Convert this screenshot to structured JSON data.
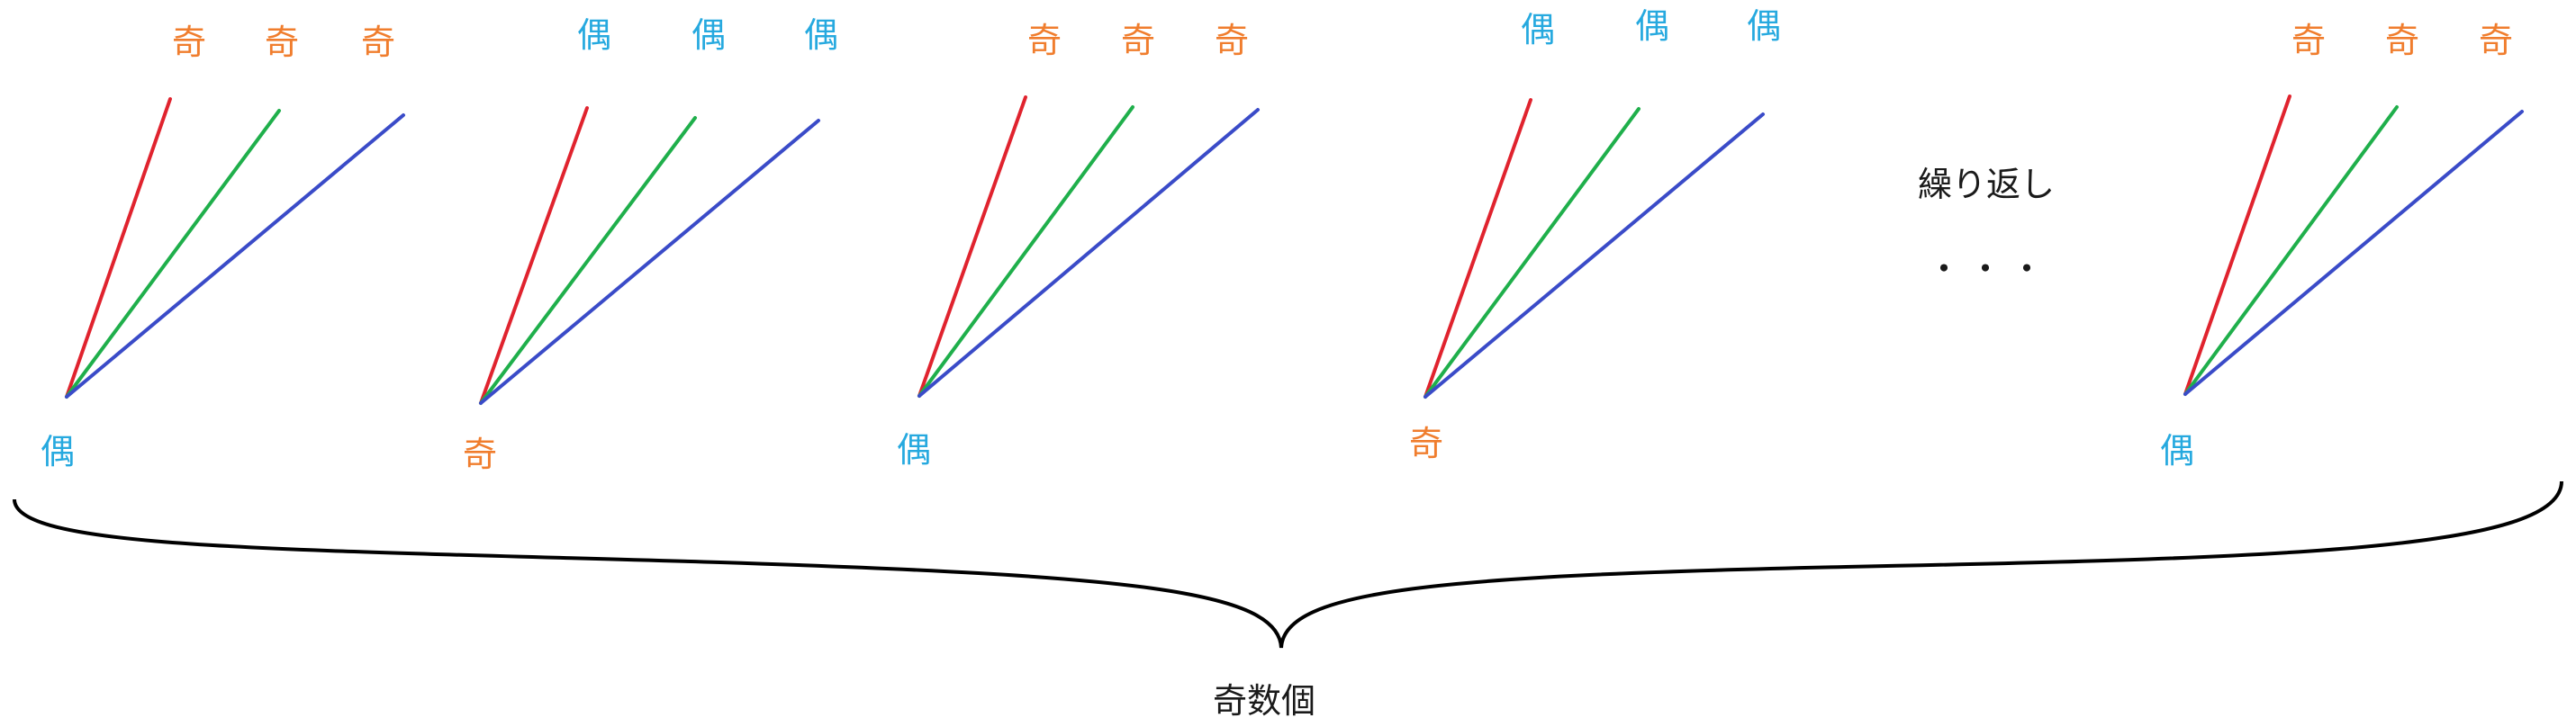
{
  "colors": {
    "odd": "#F07D2D",
    "even": "#26A9DF",
    "ray_1": "#E0232E",
    "ray_2": "#1FAF4B",
    "ray_3": "#3A4BC8"
  },
  "groups": [
    {
      "bottom_label": "偶",
      "bottom_kind": "even",
      "top_labels": [
        "奇",
        "奇",
        "奇"
      ],
      "top_kind": "odd"
    },
    {
      "bottom_label": "奇",
      "bottom_kind": "odd",
      "top_labels": [
        "偶",
        "偶",
        "偶"
      ],
      "top_kind": "even"
    },
    {
      "bottom_label": "偶",
      "bottom_kind": "even",
      "top_labels": [
        "奇",
        "奇",
        "奇"
      ],
      "top_kind": "odd"
    },
    {
      "bottom_label": "奇",
      "bottom_kind": "odd",
      "top_labels": [
        "偶",
        "偶",
        "偶"
      ],
      "top_kind": "even"
    },
    {
      "bottom_label": "偶",
      "bottom_kind": "even",
      "top_labels": [
        "奇",
        "奇",
        "奇"
      ],
      "top_kind": "odd"
    }
  ],
  "repeat_label": "繰り返し",
  "ellipsis": "・・・",
  "brace_label": "奇数個"
}
